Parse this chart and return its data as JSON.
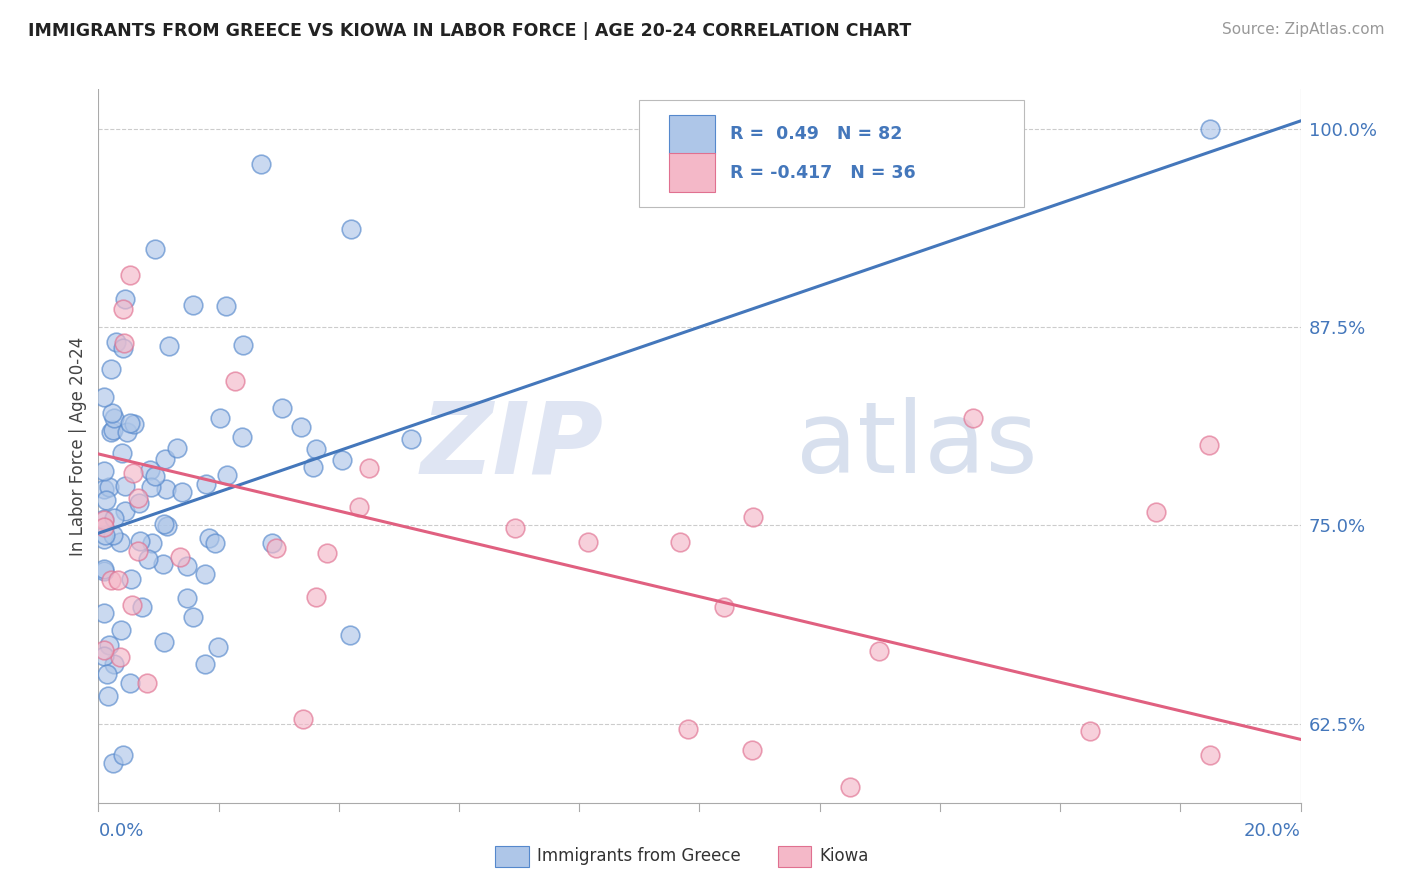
{
  "title": "IMMIGRANTS FROM GREECE VS KIOWA IN LABOR FORCE | AGE 20-24 CORRELATION CHART",
  "source": "Source: ZipAtlas.com",
  "ylabel": "In Labor Force | Age 20-24",
  "legend_blue_label": "Immigrants from Greece",
  "legend_pink_label": "Kiowa",
  "R_blue": 0.49,
  "N_blue": 82,
  "R_pink": -0.417,
  "N_pink": 36,
  "blue_color": "#aec6e8",
  "blue_edge_color": "#5588cc",
  "blue_line_color": "#4477bb",
  "pink_color": "#f4b8c8",
  "pink_edge_color": "#e07090",
  "pink_line_color": "#e06080",
  "background_color": "#ffffff",
  "grid_color": "#cccccc",
  "tick_color": "#4477bb",
  "xmin": 0.0,
  "xmax": 0.2,
  "ymin": 0.575,
  "ymax": 1.025,
  "yticks": [
    0.625,
    0.75,
    0.875,
    1.0
  ],
  "ytick_labels": [
    "62.5%",
    "75.0%",
    "87.5%",
    "100.0%"
  ],
  "blue_line_x0": 0.0,
  "blue_line_x1": 0.2,
  "blue_line_y0": 0.745,
  "blue_line_y1": 1.005,
  "pink_line_x0": 0.0,
  "pink_line_x1": 0.2,
  "pink_line_y0": 0.795,
  "pink_line_y1": 0.615,
  "watermark_zip": "ZIP",
  "watermark_atlas": "atlas"
}
